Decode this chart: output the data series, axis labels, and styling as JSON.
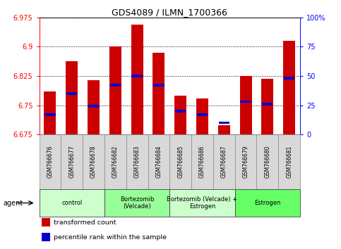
{
  "title": "GDS4089 / ILMN_1700366",
  "samples": [
    "GSM766676",
    "GSM766677",
    "GSM766678",
    "GSM766682",
    "GSM766683",
    "GSM766684",
    "GSM766685",
    "GSM766686",
    "GSM766687",
    "GSM766679",
    "GSM766680",
    "GSM766681"
  ],
  "transformed_count": [
    6.785,
    6.862,
    6.815,
    6.9,
    6.957,
    6.885,
    6.775,
    6.768,
    6.698,
    6.825,
    6.818,
    6.916
  ],
  "percentile_rank": [
    17,
    35,
    24,
    42,
    50,
    42,
    20,
    17,
    10,
    28,
    26,
    48
  ],
  "ymin": 6.675,
  "ymax": 6.975,
  "yticks": [
    6.675,
    6.75,
    6.825,
    6.9,
    6.975
  ],
  "right_yticks": [
    0,
    25,
    50,
    75,
    100
  ],
  "right_ylabels": [
    "0",
    "25",
    "50",
    "75",
    "100%"
  ],
  "groups": [
    {
      "label": "control",
      "start": 0,
      "end": 3,
      "color": "#ccffcc"
    },
    {
      "label": "Bortezomib\n(Velcade)",
      "start": 3,
      "end": 6,
      "color": "#99ff99"
    },
    {
      "label": "Bortezomib (Velcade) +\nEstrogen",
      "start": 6,
      "end": 9,
      "color": "#ccffcc"
    },
    {
      "label": "Estrogen",
      "start": 9,
      "end": 12,
      "color": "#66ff66"
    }
  ],
  "bar_color": "#cc0000",
  "blue_color": "#0000cc",
  "bar_width": 0.55,
  "legend_items": [
    {
      "color": "#cc0000",
      "label": "transformed count"
    },
    {
      "color": "#0000cc",
      "label": "percentile rank within the sample"
    }
  ],
  "fig_width": 4.83,
  "fig_height": 3.54,
  "fig_dpi": 100
}
